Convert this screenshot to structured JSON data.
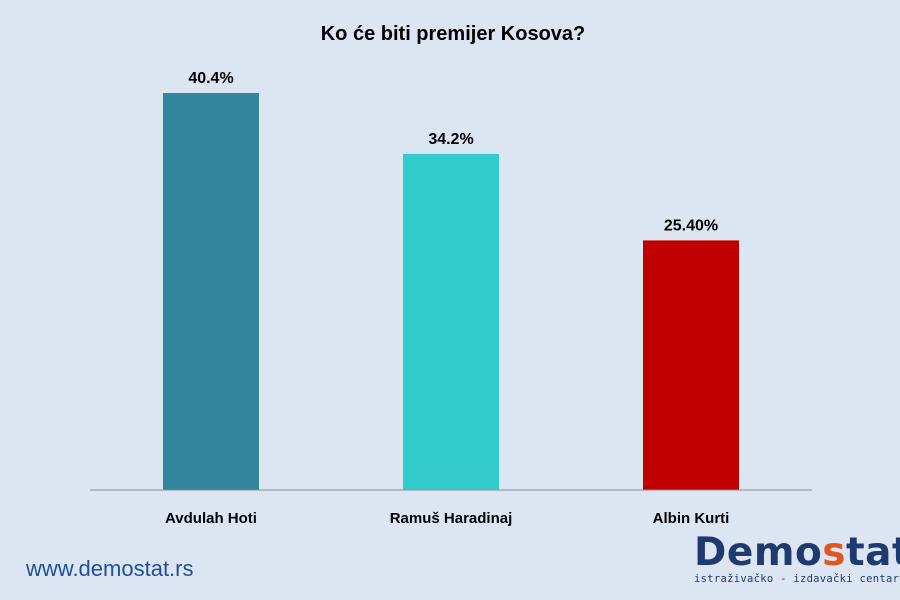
{
  "chart_data": {
    "type": "bar",
    "title": "Ko će biti premijer Kosova?",
    "categories": [
      "Avdulah Hoti",
      "Ramuš Haradinaj",
      "Albin Kurti"
    ],
    "values": [
      40.4,
      34.2,
      25.4
    ],
    "value_labels": [
      "40.4%",
      "34.2%",
      "25.40%"
    ],
    "colors": [
      "#31859c",
      "#33cccc",
      "#c00000"
    ],
    "xlabel": "",
    "ylabel": "",
    "ylim": [
      0,
      40.4
    ],
    "grid": false,
    "legend": "none"
  },
  "footer": {
    "url": "www.demostat.rs",
    "logo_main": "Demo",
    "logo_accent": "s",
    "logo_rest": "tat",
    "logo_tagline": "istraživačko - izdavački centar"
  }
}
